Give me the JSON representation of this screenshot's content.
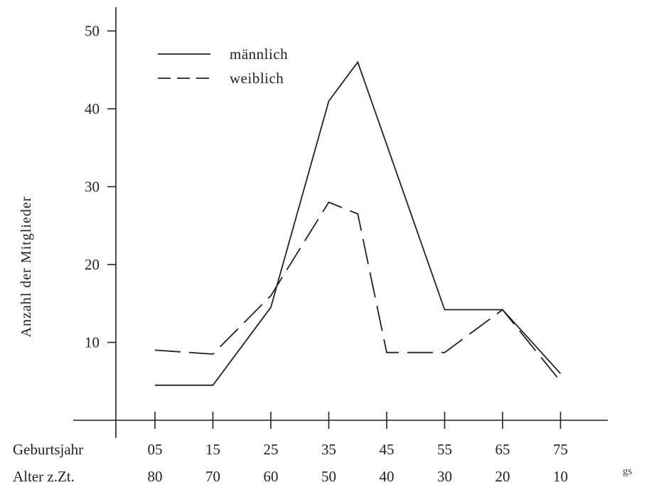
{
  "chart_data": {
    "type": "line",
    "title": "",
    "ylabel": "Anzahl der Mitglieder",
    "xlabel": "",
    "ylim": [
      0,
      52
    ],
    "yticks": [
      10,
      20,
      30,
      40,
      50
    ],
    "ytick_labels": [
      "10",
      "20",
      "30",
      "40",
      "50"
    ],
    "x_rows": [
      {
        "label": "Geburtsjahr",
        "ticks": [
          "05",
          "15",
          "25",
          "35",
          "45",
          "55",
          "65",
          "75"
        ]
      },
      {
        "label": "Alter z.Zt.",
        "ticks": [
          "80",
          "70",
          "60",
          "50",
          "40",
          "30",
          "20",
          "10"
        ]
      }
    ],
    "x_tick_positions": [
      5,
      15,
      25,
      35,
      45,
      55,
      65,
      75
    ],
    "xlim": [
      -1,
      82
    ],
    "series": [
      {
        "name": "männlich",
        "style": "solid",
        "x": [
          5,
          15,
          25,
          35,
          40,
          55,
          65,
          75
        ],
        "y": [
          4.5,
          4.5,
          14.5,
          41,
          46,
          14.2,
          14.2,
          6
        ]
      },
      {
        "name": "weiblich",
        "style": "dashed",
        "x": [
          5,
          15,
          25,
          35,
          40,
          45,
          55,
          65,
          75
        ],
        "y": [
          9,
          8.5,
          16,
          28,
          26.5,
          8.7,
          8.7,
          14.2,
          5
        ]
      }
    ],
    "legend_position": "top-left",
    "grid": false,
    "note": "gs"
  }
}
